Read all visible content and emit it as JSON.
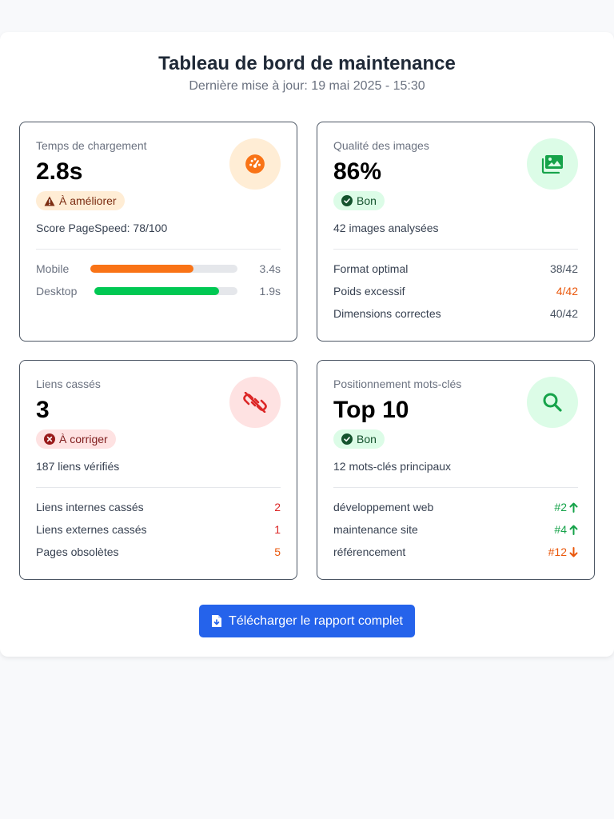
{
  "header": {
    "title": "Tableau de bord de maintenance",
    "subtitle": "Dernière mise à jour: 19 mai 2025 - 15:30"
  },
  "cards": {
    "load": {
      "label": "Temps de chargement",
      "value": "2.8s",
      "icon": "speedometer-icon",
      "badge": "À améliorer",
      "meta": "Score PageSpeed: 78/100",
      "bars": [
        {
          "label": "Mobile",
          "value": "3.4s",
          "fill": 0.7,
          "color": "#f97316"
        },
        {
          "label": "Desktop",
          "value": "1.9s",
          "fill": 0.87,
          "color": "#00c853"
        }
      ]
    },
    "images": {
      "label": "Qualité des images",
      "value": "86%",
      "icon": "images-icon",
      "badge": "Bon",
      "meta": "42 images analysées",
      "rows": [
        {
          "label": "Format optimal",
          "value": "38/42"
        },
        {
          "label": "Poids excessif",
          "value": "4/42"
        },
        {
          "label": "Dimensions correctes",
          "value": "40/42"
        }
      ]
    },
    "links": {
      "label": "Liens cassés",
      "value": "3",
      "icon": "broken-link-icon",
      "badge": "À corriger",
      "meta": "187 liens vérifiés",
      "rows": [
        {
          "label": "Liens internes cassés",
          "value": "2"
        },
        {
          "label": "Liens externes cassés",
          "value": "1"
        },
        {
          "label": "Pages obsolètes",
          "value": "5"
        }
      ]
    },
    "keywords": {
      "label": "Positionnement mots-clés",
      "value": "Top 10",
      "icon": "search-icon",
      "badge": "Bon",
      "meta": "12 mots-clés principaux",
      "rows": [
        {
          "label": "développement web",
          "value": "#2",
          "trend": "up"
        },
        {
          "label": "maintenance site",
          "value": "#4",
          "trend": "up"
        },
        {
          "label": "référencement",
          "value": "#12",
          "trend": "down"
        }
      ]
    }
  },
  "download": {
    "label": "Télécharger le rapport complet"
  },
  "colors": {
    "accent": "#2563eb",
    "warning": "#f97316",
    "success": "#00c853",
    "danger": "#dc2626"
  }
}
